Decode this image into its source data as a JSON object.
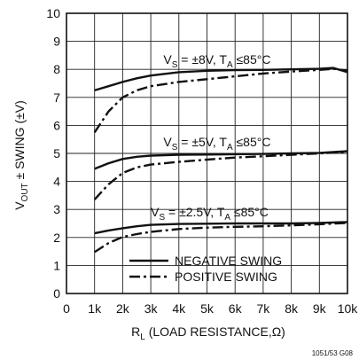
{
  "chart_data": {
    "type": "line",
    "xlabel_main": "R",
    "xlabel_sub": "L",
    "xlabel_rest": " (LOAD RESISTANCE,Ω)",
    "ylabel_main": "V",
    "ylabel_sub": "OUT",
    "ylabel_rest": " ± SWING (±V)",
    "x_ticks": [
      "0",
      "1k",
      "2k",
      "3k",
      "4k",
      "5k",
      "6k",
      "7k",
      "8k",
      "9k",
      "10k"
    ],
    "y_ticks": [
      "0",
      "1",
      "2",
      "3",
      "4",
      "5",
      "6",
      "7",
      "8",
      "9",
      "10"
    ],
    "xlim": [
      0,
      10
    ],
    "ylim": [
      0,
      10
    ],
    "grid": true,
    "legend": {
      "position": "bottom-center",
      "items": [
        {
          "label": "NEGATIVE SWING",
          "style": "solid"
        },
        {
          "label": "POSITIVE SWING",
          "style": "dash-dot"
        }
      ]
    },
    "annotations": [
      {
        "id": "a8",
        "v": "V",
        "vs": "S",
        "mid": " = ±8V, T",
        "ts": "A",
        "end": " ≤85°C",
        "x": 3.45,
        "y": 8.2
      },
      {
        "id": "a5",
        "v": "V",
        "vs": "S",
        "mid": " = ±5V, T",
        "ts": "A",
        "end": " ≤85°C",
        "x": 3.45,
        "y": 5.25
      },
      {
        "id": "a25",
        "v": "V",
        "vs": "S",
        "mid": " = ±2.5V, T",
        "ts": "A",
        "end": " ≤85°C",
        "x": 3.0,
        "y": 2.75
      }
    ],
    "series": [
      {
        "id": "neg8",
        "style": "solid",
        "x": [
          1,
          1.5,
          2,
          2.5,
          3,
          4,
          5,
          6,
          7,
          8,
          9,
          9.5,
          10
        ],
        "y": [
          7.25,
          7.4,
          7.55,
          7.68,
          7.78,
          7.9,
          7.95,
          7.97,
          7.98,
          8.0,
          8.02,
          8.05,
          7.9
        ]
      },
      {
        "id": "pos8",
        "style": "dash-dot",
        "x": [
          1,
          1.5,
          2,
          2.5,
          3,
          4,
          5,
          6,
          7,
          8,
          9,
          9.5,
          10
        ],
        "y": [
          5.75,
          6.5,
          7.0,
          7.25,
          7.4,
          7.55,
          7.65,
          7.75,
          7.85,
          7.92,
          7.98,
          8.02,
          7.95
        ]
      },
      {
        "id": "neg5",
        "style": "solid",
        "x": [
          1,
          1.5,
          2,
          2.5,
          3,
          4,
          5,
          6,
          7,
          8,
          9,
          10
        ],
        "y": [
          4.45,
          4.65,
          4.8,
          4.88,
          4.92,
          4.95,
          4.96,
          4.97,
          4.98,
          5.0,
          5.02,
          5.08
        ]
      },
      {
        "id": "pos5",
        "style": "dash-dot",
        "x": [
          1,
          1.5,
          2,
          2.5,
          3,
          4,
          5,
          6,
          7,
          8,
          9,
          10
        ],
        "y": [
          3.35,
          3.9,
          4.3,
          4.5,
          4.6,
          4.7,
          4.78,
          4.85,
          4.9,
          4.95,
          5.0,
          5.05
        ]
      },
      {
        "id": "neg25",
        "style": "solid",
        "x": [
          1,
          1.5,
          2,
          2.5,
          3,
          4,
          5,
          6,
          7,
          8,
          9,
          10
        ],
        "y": [
          2.15,
          2.25,
          2.33,
          2.4,
          2.45,
          2.48,
          2.49,
          2.5,
          2.5,
          2.5,
          2.52,
          2.55
        ]
      },
      {
        "id": "pos25",
        "style": "dash-dot",
        "x": [
          1,
          1.5,
          2,
          2.5,
          3,
          4,
          5,
          6,
          7,
          8,
          9,
          10
        ],
        "y": [
          1.48,
          1.8,
          2.02,
          2.12,
          2.2,
          2.3,
          2.35,
          2.38,
          2.4,
          2.43,
          2.47,
          2.52
        ]
      }
    ]
  },
  "figure_code": "1051/53 G08"
}
